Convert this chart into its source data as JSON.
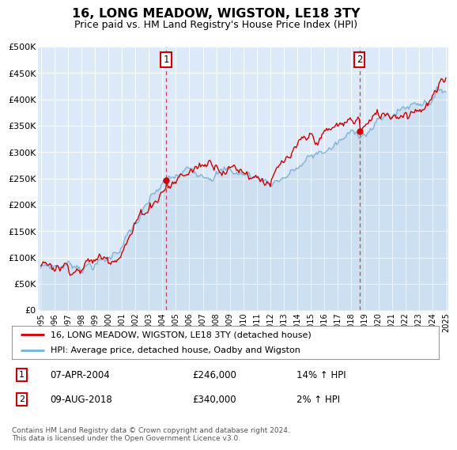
{
  "title": "16, LONG MEADOW, WIGSTON, LE18 3TY",
  "subtitle": "Price paid vs. HM Land Registry's House Price Index (HPI)",
  "ylabel_ticks": [
    "£0",
    "£50K",
    "£100K",
    "£150K",
    "£200K",
    "£250K",
    "£300K",
    "£350K",
    "£400K",
    "£450K",
    "£500K"
  ],
  "ytick_values": [
    0,
    50000,
    100000,
    150000,
    200000,
    250000,
    300000,
    350000,
    400000,
    450000,
    500000
  ],
  "ylim": [
    0,
    500000
  ],
  "xmin_year": 1995,
  "xmax_year": 2025,
  "xtick_years": [
    1995,
    1996,
    1997,
    1998,
    1999,
    2000,
    2001,
    2002,
    2003,
    2004,
    2005,
    2006,
    2007,
    2008,
    2009,
    2010,
    2011,
    2012,
    2013,
    2014,
    2015,
    2016,
    2017,
    2018,
    2019,
    2020,
    2021,
    2022,
    2023,
    2024,
    2025
  ],
  "bg_color": "#dce9f8",
  "fig_bg_color": "#ffffff",
  "red_line_color": "#cc0000",
  "blue_line_color": "#7bafd4",
  "sale1_year": 2004.27,
  "sale1_price": 246000,
  "sale2_year": 2018.61,
  "sale2_price": 340000,
  "legend_label_red": "16, LONG MEADOW, WIGSTON, LE18 3TY (detached house)",
  "legend_label_blue": "HPI: Average price, detached house, Oadby and Wigston",
  "annot1_date": "07-APR-2004",
  "annot1_price": "£246,000",
  "annot1_hpi": "14% ↑ HPI",
  "annot2_date": "09-AUG-2018",
  "annot2_price": "£340,000",
  "annot2_hpi": "2% ↑ HPI",
  "footer": "Contains HM Land Registry data © Crown copyright and database right 2024.\nThis data is licensed under the Open Government Licence v3.0."
}
